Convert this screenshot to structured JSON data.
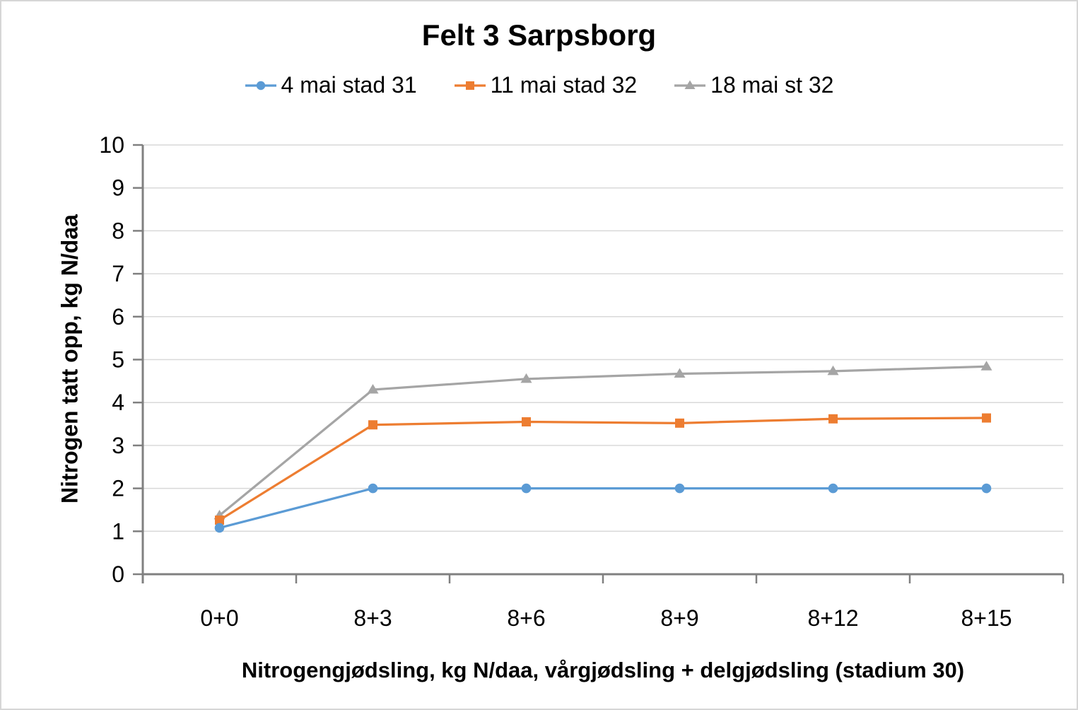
{
  "window": {
    "background": "#ffffff",
    "border_color": "#d6d6d6"
  },
  "chart_data": {
    "type": "line",
    "title": "Felt 3 Sarpsborg",
    "categories": [
      "0+0",
      "8+3",
      "8+6",
      "8+9",
      "8+12",
      "8+15"
    ],
    "series": [
      {
        "name": "4 mai stad 31",
        "marker": "circle",
        "color": "#5B9BD5",
        "values": [
          1.08,
          2.0,
          2.0,
          2.0,
          2.0,
          2.0
        ]
      },
      {
        "name": "11 mai stad 32",
        "marker": "square",
        "color": "#ED7D31",
        "values": [
          1.26,
          3.48,
          3.55,
          3.52,
          3.62,
          3.64
        ]
      },
      {
        "name": "18 mai st 32",
        "marker": "triangle",
        "color": "#A5A5A5",
        "values": [
          1.37,
          4.3,
          4.55,
          4.67,
          4.73,
          4.84
        ]
      }
    ],
    "xlabel": "Nitrogengjødsling, kg N/daa, vårgjødsling + delgjødsling (stadium 30)",
    "ylabel": "Nitrogen tatt opp, kg N/daa",
    "ylim": [
      0,
      10
    ],
    "y_tick_step": 1,
    "y_tick_labels": [
      "0",
      "1",
      "2",
      "3",
      "4",
      "5",
      "6",
      "7",
      "8",
      "9",
      "10"
    ],
    "grid": "horizontal",
    "legend_position": "top",
    "draw_order": "last-series-behind",
    "colors": {
      "axis": "#808080",
      "gridline": "#D9D9D9",
      "tick_text": "#000000"
    }
  }
}
